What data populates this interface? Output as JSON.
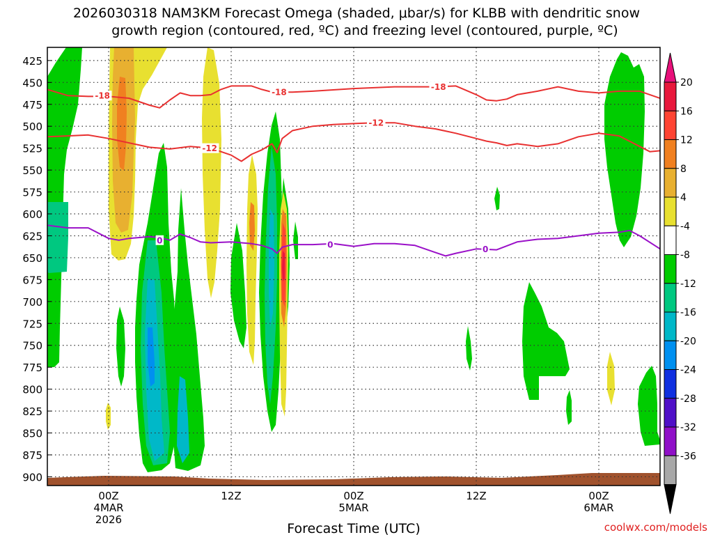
{
  "chart_data": {
    "type": "heatmap",
    "title_line1": "2026030318 NAM3KM Forecast Omega (shaded, μbar/s) for KLBB with dendritic snow",
    "title_line2": "growth region (contoured, red, ºC) and freezing level (contoured, purple, ºC)",
    "xlabel": "Forecast Time (UTC)",
    "credit": "coolwx.com/models",
    "x_range": [
      -6,
      54
    ],
    "y_range": [
      410,
      910
    ],
    "y_ticks": [
      425,
      450,
      475,
      500,
      525,
      550,
      575,
      600,
      625,
      650,
      675,
      700,
      725,
      750,
      775,
      800,
      825,
      850,
      875,
      900
    ],
    "x_ticks": [
      {
        "h": 0,
        "labels": [
          "00Z",
          "4MAR",
          "2026"
        ]
      },
      {
        "h": 12,
        "labels": [
          "12Z"
        ]
      },
      {
        "h": 24,
        "labels": [
          "00Z",
          "5MAR"
        ]
      },
      {
        "h": 36,
        "labels": [
          "12Z"
        ]
      },
      {
        "h": 48,
        "labels": [
          "00Z",
          "6MAR"
        ]
      }
    ],
    "colorbar": {
      "labels": [
        "20",
        "16",
        "12",
        "8",
        "4",
        "-4",
        "-8",
        "-12",
        "-16",
        "-20",
        "-24",
        "-28",
        "-32",
        "-36"
      ],
      "colors": [
        "#e8183c",
        "#ff4433",
        "#f08020",
        "#e8b030",
        "#e8e030",
        "#ffffff",
        "#00cc00",
        "#00c880",
        "#00b8c8",
        "#0090f0",
        "#1030e0",
        "#5010c8",
        "#9010c8",
        "#a8a8a8"
      ],
      "top_arrow_color": "#e8107a",
      "bottom_arrow_color": "#000000"
    },
    "contours": {
      "minus18": {
        "label": "-18",
        "color": "#e83030",
        "x": [
          -6,
          -4,
          -2,
          0,
          2,
          4,
          5,
          6,
          7,
          8,
          9,
          10,
          11,
          12,
          14,
          15,
          16,
          18,
          20,
          24,
          28,
          30,
          32,
          34,
          36,
          37,
          38,
          39,
          40,
          42,
          44,
          46,
          48,
          50,
          52,
          54
        ],
        "p": [
          458,
          465,
          466,
          466,
          468,
          476,
          479,
          470,
          462,
          465,
          465,
          464,
          458,
          454,
          454,
          458,
          461,
          461,
          460,
          457,
          455,
          455,
          455,
          454,
          464,
          470,
          471,
          469,
          464,
          460,
          455,
          460,
          462,
          460,
          460,
          468
        ],
        "label_positions": [
          [
            -0.6,
            465
          ],
          [
            16.7,
            461
          ],
          [
            32.3,
            455
          ]
        ]
      },
      "minus12": {
        "label": "-12",
        "color": "#e83030",
        "x": [
          -6,
          -4,
          -2,
          0,
          2,
          4,
          6,
          8,
          10,
          12,
          13,
          14,
          15,
          16,
          16.5,
          17,
          18,
          20,
          22,
          24,
          26,
          28,
          30,
          32,
          34,
          36,
          37,
          38,
          39,
          40,
          42,
          44,
          46,
          48,
          50,
          52,
          53,
          54
        ],
        "p": [
          512,
          511,
          510,
          514,
          519,
          524,
          526,
          523,
          525,
          533,
          540,
          532,
          527,
          520,
          530,
          514,
          505,
          500,
          498,
          497,
          496,
          496,
          500,
          503,
          508,
          514,
          517,
          519,
          522,
          520,
          523,
          520,
          512,
          508,
          511,
          523,
          529,
          528
        ],
        "label_positions": [
          [
            9.9,
            525
          ],
          [
            26.2,
            496
          ]
        ]
      },
      "freezing": {
        "label": "0",
        "color": "#9a10c8",
        "x": [
          -6,
          -4,
          -2,
          0,
          1,
          2,
          4,
          5,
          6,
          7,
          8,
          9,
          10,
          12,
          14,
          15,
          16,
          16.5,
          17,
          18,
          20,
          22,
          24,
          26,
          28,
          30,
          32,
          33,
          34,
          36,
          38,
          40,
          42,
          44,
          46,
          48,
          50,
          51,
          52,
          54
        ],
        "p": [
          613,
          616,
          616,
          628,
          630,
          628,
          626,
          627,
          630,
          623,
          627,
          632,
          633,
          632,
          634,
          636,
          640,
          645,
          638,
          635,
          635,
          634,
          637,
          634,
          634,
          636,
          644,
          648,
          645,
          640,
          641,
          632,
          629,
          628,
          625,
          622,
          621,
          619,
          625,
          640
        ],
        "label_positions": [
          [
            5,
            630
          ],
          [
            21.7,
            635
          ],
          [
            36.9,
            640
          ]
        ]
      }
    }
  }
}
